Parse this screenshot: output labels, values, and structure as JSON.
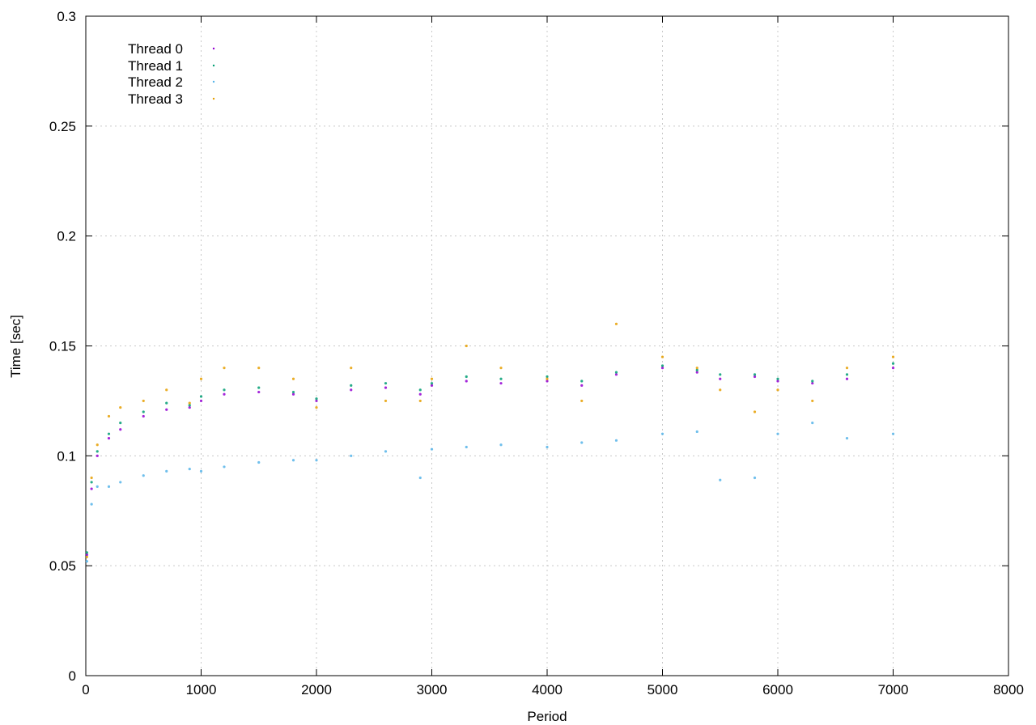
{
  "chart_data": {
    "type": "scatter",
    "title": "",
    "xlabel": "Period",
    "ylabel": "Time [sec]",
    "xlim": [
      0,
      8000
    ],
    "ylim": [
      0,
      0.3
    ],
    "x_ticks": [
      0,
      1000,
      2000,
      3000,
      4000,
      5000,
      6000,
      7000,
      8000
    ],
    "y_ticks": [
      0,
      0.05,
      0.1,
      0.15,
      0.2,
      0.25,
      0.3
    ],
    "x_tick_labels": [
      "0",
      "1000",
      "2000",
      "3000",
      "4000",
      "5000",
      "6000",
      "7000",
      "8000"
    ],
    "y_tick_labels": [
      "0",
      "0.05",
      "0.1",
      "0.15",
      "0.2",
      "0.25",
      "0.3"
    ],
    "grid": true,
    "legend_position": "top-left",
    "series": [
      {
        "name": "Thread 0",
        "color": "#9400d3",
        "x": [
          10,
          50,
          100,
          200,
          300,
          500,
          700,
          900,
          1000,
          1200,
          1500,
          1800,
          2000,
          2300,
          2600,
          2900,
          3000,
          3300,
          3600,
          4000,
          4300,
          4600,
          5000,
          5300,
          5500,
          5800,
          6000,
          6300,
          6600,
          7000
        ],
        "y": [
          0.055,
          0.085,
          0.1,
          0.108,
          0.112,
          0.118,
          0.121,
          0.122,
          0.125,
          0.128,
          0.129,
          0.128,
          0.125,
          0.13,
          0.131,
          0.128,
          0.132,
          0.134,
          0.133,
          0.134,
          0.132,
          0.137,
          0.14,
          0.138,
          0.135,
          0.136,
          0.134,
          0.133,
          0.135,
          0.14
        ]
      },
      {
        "name": "Thread 1",
        "color": "#009e73",
        "x": [
          10,
          50,
          100,
          200,
          300,
          500,
          700,
          900,
          1000,
          1200,
          1500,
          1800,
          2000,
          2300,
          2600,
          2900,
          3000,
          3300,
          3600,
          4000,
          4300,
          4600,
          5000,
          5300,
          5500,
          5800,
          6000,
          6300,
          6600,
          7000
        ],
        "y": [
          0.056,
          0.088,
          0.102,
          0.11,
          0.115,
          0.12,
          0.124,
          0.123,
          0.127,
          0.13,
          0.131,
          0.129,
          0.126,
          0.132,
          0.133,
          0.13,
          0.133,
          0.136,
          0.135,
          0.136,
          0.134,
          0.138,
          0.141,
          0.139,
          0.137,
          0.137,
          0.135,
          0.134,
          0.137,
          0.142
        ]
      },
      {
        "name": "Thread 2",
        "color": "#56b4e9",
        "x": [
          10,
          50,
          100,
          200,
          300,
          500,
          700,
          900,
          1000,
          1200,
          1500,
          1800,
          2000,
          2300,
          2600,
          2900,
          3000,
          3300,
          3600,
          4000,
          4300,
          4600,
          5000,
          5300,
          5500,
          5800,
          6000,
          6300,
          6600,
          7000
        ],
        "y": [
          0.052,
          0.078,
          0.086,
          0.086,
          0.088,
          0.091,
          0.093,
          0.094,
          0.093,
          0.095,
          0.097,
          0.098,
          0.098,
          0.1,
          0.102,
          0.09,
          0.103,
          0.104,
          0.105,
          0.104,
          0.106,
          0.107,
          0.11,
          0.111,
          0.089,
          0.09,
          0.11,
          0.115,
          0.108,
          0.11
        ]
      },
      {
        "name": "Thread 3",
        "color": "#e69f00",
        "x": [
          10,
          50,
          100,
          200,
          300,
          500,
          700,
          900,
          1000,
          1200,
          1500,
          1800,
          2000,
          2300,
          2600,
          2900,
          3000,
          3300,
          3600,
          4000,
          4300,
          4600,
          5000,
          5300,
          5500,
          5800,
          6000,
          6300,
          6600,
          7000
        ],
        "y": [
          0.054,
          0.09,
          0.105,
          0.118,
          0.122,
          0.125,
          0.13,
          0.124,
          0.135,
          0.14,
          0.14,
          0.135,
          0.122,
          0.14,
          0.125,
          0.125,
          0.135,
          0.15,
          0.14,
          0.135,
          0.125,
          0.16,
          0.145,
          0.14,
          0.13,
          0.12,
          0.13,
          0.125,
          0.14,
          0.145
        ]
      }
    ]
  }
}
